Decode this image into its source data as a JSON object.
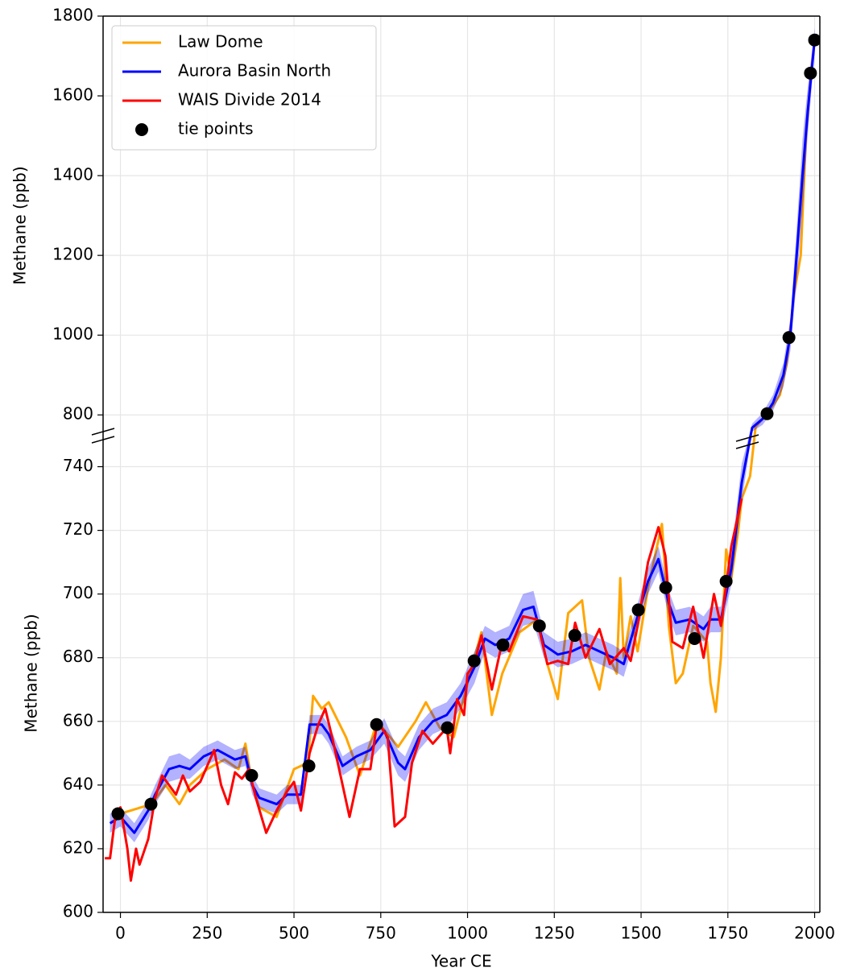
{
  "chart_data": {
    "type": "line",
    "xlabel": "Year CE",
    "xlim": [
      -50,
      2015
    ],
    "xticks": [
      0,
      250,
      500,
      750,
      1000,
      1250,
      1500,
      1750,
      2000
    ],
    "grid": true,
    "legend": "upper left",
    "panels": [
      {
        "ylabel": "Methane (ppb)",
        "ylim": [
          750,
          1800
        ],
        "yticks": [
          800,
          1000,
          1200,
          1400,
          1600,
          1800
        ]
      },
      {
        "ylabel": "Methane (ppb)",
        "ylim": [
          600,
          750
        ],
        "yticks": [
          600,
          620,
          640,
          660,
          680,
          700,
          720,
          740
        ]
      }
    ],
    "series": [
      {
        "name": "Law Dome",
        "type": "line",
        "color": "#ffa500",
        "x": [
          0,
          90,
          130,
          170,
          200,
          250,
          300,
          340,
          360,
          380,
          400,
          450,
          500,
          540,
          555,
          580,
          600,
          650,
          690,
          740,
          800,
          850,
          880,
          920,
          960,
          1000,
          1040,
          1070,
          1100,
          1150,
          1200,
          1230,
          1260,
          1290,
          1330,
          1350,
          1380,
          1400,
          1430,
          1440,
          1450,
          1470,
          1490,
          1520,
          1560,
          1580,
          1600,
          1620,
          1650,
          1690,
          1700,
          1715,
          1730,
          1745,
          1760,
          1780,
          1790,
          1814,
          1830,
          1850,
          1870,
          1900,
          1920,
          1940,
          1960,
          1975,
          1990,
          2000
        ],
        "values": [
          631,
          634,
          640,
          634,
          640,
          645,
          648,
          645,
          653,
          640,
          633,
          630,
          645,
          647,
          668,
          664,
          666,
          655,
          643,
          660,
          652,
          660,
          666,
          658,
          655,
          672,
          688,
          662,
          675,
          688,
          692,
          678,
          667,
          694,
          698,
          680,
          670,
          682,
          675,
          705,
          680,
          693,
          682,
          702,
          722,
          690,
          672,
          675,
          690,
          685,
          672,
          663,
          680,
          714,
          705,
          720,
          730,
          737,
          770,
          790,
          810,
          850,
          930,
          1100,
          1200,
          1500,
          1660,
          1740
        ]
      },
      {
        "name": "Aurora Basin North",
        "type": "line",
        "color": "#0000ff",
        "x": [
          -30,
          0,
          40,
          80,
          100,
          140,
          170,
          200,
          240,
          280,
          330,
          360,
          380,
          400,
          450,
          480,
          520,
          545,
          580,
          600,
          640,
          680,
          720,
          760,
          800,
          820,
          860,
          900,
          940,
          980,
          1020,
          1050,
          1080,
          1120,
          1160,
          1190,
          1220,
          1260,
          1300,
          1340,
          1380,
          1420,
          1450,
          1490,
          1520,
          1550,
          1580,
          1600,
          1640,
          1680,
          1700,
          1730,
          1760,
          1790,
          1820,
          1850,
          1880,
          1910,
          1930,
          1950,
          1965,
          1980,
          2000
        ],
        "values": [
          628,
          630,
          625,
          632,
          637,
          645,
          646,
          645,
          649,
          651,
          648,
          649,
          640,
          636,
          634,
          637,
          637,
          659,
          659,
          656,
          646,
          649,
          651,
          657,
          647,
          645,
          655,
          660,
          662,
          668,
          677,
          686,
          684,
          686,
          695,
          696,
          684,
          681,
          682,
          684,
          682,
          680,
          678,
          693,
          704,
          711,
          697,
          691,
          692,
          689,
          692,
          692,
          708,
          735,
          768,
          790,
          830,
          900,
          1000,
          1220,
          1400,
          1560,
          1740
        ],
        "errors": [
          3,
          3,
          3,
          3,
          3,
          4,
          4,
          3,
          3,
          3,
          3,
          3,
          3,
          3,
          3,
          3,
          3,
          3,
          3,
          3,
          3,
          3,
          3,
          4,
          4,
          4,
          4,
          4,
          4,
          4,
          5,
          4,
          4,
          4,
          5,
          5,
          4,
          4,
          4,
          4,
          4,
          4,
          4,
          4,
          4,
          4,
          4,
          4,
          4,
          4,
          4,
          4,
          5,
          6,
          10,
          15,
          20,
          30,
          40,
          70,
          90,
          60,
          30
        ]
      },
      {
        "name": "WAIS Divide 2014",
        "type": "line",
        "color": "#ff0000",
        "x": [
          -45,
          -30,
          -15,
          0,
          20,
          30,
          45,
          55,
          80,
          100,
          120,
          140,
          160,
          180,
          200,
          230,
          270,
          290,
          310,
          330,
          350,
          370,
          390,
          420,
          450,
          480,
          500,
          520,
          545,
          570,
          590,
          610,
          640,
          660,
          690,
          720,
          740,
          770,
          790,
          820,
          840,
          870,
          900,
          940,
          950,
          970,
          990,
          1000,
          1020,
          1040,
          1070,
          1100,
          1120,
          1160,
          1200,
          1230,
          1260,
          1290,
          1310,
          1340,
          1380,
          1410,
          1450,
          1470,
          1490,
          1520,
          1550,
          1570,
          1590,
          1620,
          1650,
          1680,
          1710,
          1730,
          1760,
          1790
        ],
        "values": [
          617,
          617,
          630,
          633,
          620,
          610,
          620,
          615,
          623,
          636,
          643,
          640,
          637,
          643,
          638,
          641,
          651,
          640,
          634,
          644,
          642,
          645,
          636,
          625,
          632,
          638,
          641,
          632,
          650,
          659,
          664,
          655,
          640,
          630,
          645,
          645,
          660,
          655,
          627,
          630,
          647,
          657,
          653,
          658,
          650,
          667,
          662,
          675,
          678,
          687,
          670,
          685,
          682,
          693,
          692,
          678,
          679,
          678,
          691,
          680,
          689,
          678,
          683,
          679,
          690,
          710,
          721,
          712,
          685,
          683,
          696,
          680,
          700,
          690,
          715,
          730
        ]
      },
      {
        "name": "tie points",
        "type": "scatter",
        "color": "#000000",
        "x": [
          -7,
          88,
          378,
          543,
          738,
          942,
          1019,
          1102,
          1207,
          1309,
          1492,
          1571,
          1654,
          1745,
          1863,
          1926,
          1988,
          2000
        ],
        "values": [
          631,
          634,
          643,
          646,
          659,
          658,
          679,
          684,
          690,
          687,
          695,
          702,
          686,
          704,
          803,
          994,
          1657,
          1740
        ]
      }
    ]
  }
}
